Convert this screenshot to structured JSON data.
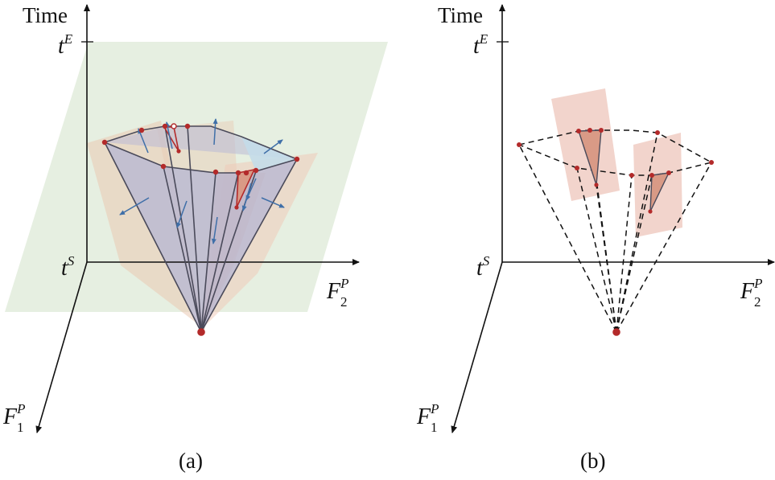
{
  "panels": [
    {
      "id": "a",
      "caption": "(a)",
      "axis_time": "Time",
      "tick_top": "t",
      "tick_top_sup": "E",
      "tick_origin": "t",
      "tick_origin_sup": "S",
      "axis_x_main": "F",
      "axis_x_sub": "2",
      "axis_x_sup": "P",
      "axis_y_main": "F",
      "axis_y_sub": "1",
      "axis_y_sup": "P"
    },
    {
      "id": "b",
      "caption": "(b)",
      "axis_time": "Time",
      "tick_top": "t",
      "tick_top_sup": "E",
      "tick_origin": "t",
      "tick_origin_sup": "S",
      "axis_x_main": "F",
      "axis_x_sub": "2",
      "axis_x_sup": "P",
      "axis_y_main": "F",
      "axis_y_sub": "1",
      "axis_y_sup": "P"
    }
  ],
  "colors": {
    "plane_green": "#e6efe1",
    "cone_fill": "#b9b9d6",
    "facet_orange": "#e9c9b3",
    "facet_pink": "#f2d4cc",
    "point_red": "#b32a2a",
    "arrow_blue": "#3f6fa8",
    "blue_highlight": "#c4dbe9"
  }
}
